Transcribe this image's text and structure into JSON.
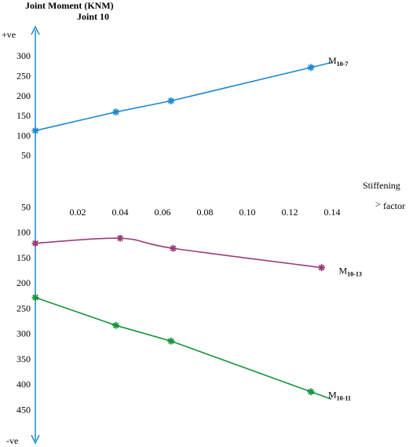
{
  "chart_data": {
    "type": "line",
    "title": "Joint Moment (KNM)",
    "subtitle": "Joint 10",
    "xlabel_line1": "Stiffening",
    "xlabel_line2": "factor",
    "xlabel_arrow": ">",
    "ylabel_top": "+ve",
    "ylabel_bottom": "-ve",
    "x_ticks": [
      "0.02",
      "0.04",
      "0.06",
      "0.08",
      "0.10",
      "0.12",
      "0.14"
    ],
    "y_ticks_positive": [
      "300",
      "250",
      "200",
      "150",
      "100",
      "50"
    ],
    "y_ticks_negative": [
      "50",
      "100",
      "150",
      "200",
      "250",
      "300",
      "350",
      "400",
      "450"
    ],
    "xlim": [
      0,
      0.15
    ],
    "ylim": [
      -470,
      320
    ],
    "series": [
      {
        "name": "M",
        "subscript": "10-7",
        "color": "#1f8ad0",
        "smooth": false,
        "x": [
          0,
          0.038,
          0.064,
          0.13
        ],
        "y": [
          112,
          159,
          187,
          271
        ]
      },
      {
        "name": "M",
        "subscript": "10-13",
        "color": "#993d7a",
        "smooth": true,
        "x": [
          0,
          0.04,
          0.065,
          0.135
        ],
        "y": [
          -122,
          -112,
          -132,
          -170
        ]
      },
      {
        "name": "M",
        "subscript": "10-11",
        "color": "#1a9441",
        "smooth": false,
        "x": [
          0,
          0.038,
          0.064,
          0.13
        ],
        "y": [
          -229,
          -284,
          -315,
          -415
        ]
      }
    ]
  }
}
